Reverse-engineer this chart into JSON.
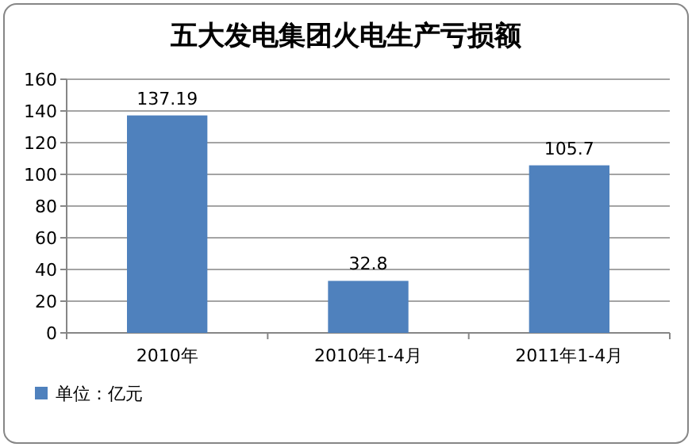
{
  "chart_data": {
    "type": "bar",
    "title": "五大发电集团火电生产亏损额",
    "categories": [
      "2010年",
      "2010年1-4月",
      "2011年1-4月"
    ],
    "series": [
      {
        "name": "单位：亿元",
        "color": "#4f81bd",
        "values": [
          137.19,
          32.8,
          105.7
        ]
      }
    ],
    "ylim": [
      0,
      160
    ],
    "yticks": [
      0,
      20,
      40,
      60,
      80,
      100,
      120,
      140,
      160
    ],
    "grid": "y",
    "legend": "bottom left",
    "data_labels": true
  }
}
